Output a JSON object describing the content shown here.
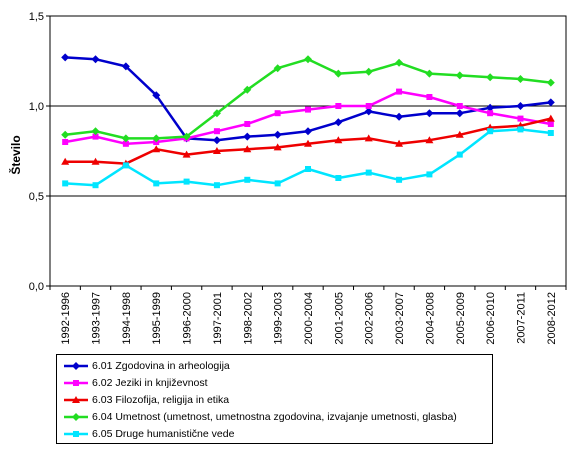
{
  "chart_data": {
    "type": "line",
    "title": "",
    "xlabel": "",
    "ylabel": "Število",
    "ylim": [
      0,
      1.5
    ],
    "yticks": [
      "0,0",
      "0,5",
      "1,0",
      "1,5"
    ],
    "grid": "horizontal at 0.5 and 1.0",
    "legend_position": "bottom",
    "categories": [
      "1992-1996",
      "1993-1997",
      "1994-1998",
      "1995-1999",
      "1996-2000",
      "1997-2001",
      "1998-2002",
      "1999-2003",
      "2000-2004",
      "2001-2005",
      "2002-2006",
      "2003-2007",
      "2004-2008",
      "2005-2009",
      "2006-2010",
      "2007-2011",
      "2008-2012"
    ],
    "series": [
      {
        "name": "6.01 Zgodovina in arheologija",
        "color": "#0000CC",
        "marker": "diamond",
        "values": [
          1.27,
          1.26,
          1.22,
          1.06,
          0.82,
          0.81,
          0.83,
          0.84,
          0.86,
          0.91,
          0.97,
          0.94,
          0.96,
          0.96,
          0.99,
          1.0,
          1.02
        ]
      },
      {
        "name": "6.02 Jeziki in književnost",
        "color": "#FF00FF",
        "marker": "square",
        "values": [
          0.8,
          0.83,
          0.79,
          0.8,
          0.82,
          0.86,
          0.9,
          0.96,
          0.98,
          1.0,
          1.0,
          1.08,
          1.05,
          1.0,
          0.96,
          0.93,
          0.9
        ]
      },
      {
        "name": "6.03 Filozofija, religija in etika",
        "color": "#EE0000",
        "marker": "triangle",
        "values": [
          0.69,
          0.69,
          0.68,
          0.76,
          0.73,
          0.75,
          0.76,
          0.77,
          0.79,
          0.81,
          0.82,
          0.79,
          0.81,
          0.84,
          0.88,
          0.89,
          0.93
        ]
      },
      {
        "name": "6.04 Umetnost (umetnost, umetnostna zgodovina, izvajanje umetnosti, glasba)",
        "color": "#22DD22",
        "marker": "diamond",
        "values": [
          0.84,
          0.86,
          0.82,
          0.82,
          0.83,
          0.96,
          1.09,
          1.21,
          1.26,
          1.18,
          1.19,
          1.24,
          1.18,
          1.17,
          1.16,
          1.15,
          1.13
        ]
      },
      {
        "name": "6.05 Druge humanistične vede",
        "color": "#00E5FF",
        "marker": "square",
        "values": [
          0.57,
          0.56,
          0.67,
          0.57,
          0.58,
          0.56,
          0.59,
          0.57,
          0.65,
          0.6,
          0.63,
          0.59,
          0.62,
          0.73,
          0.86,
          0.87,
          0.85
        ]
      }
    ]
  }
}
